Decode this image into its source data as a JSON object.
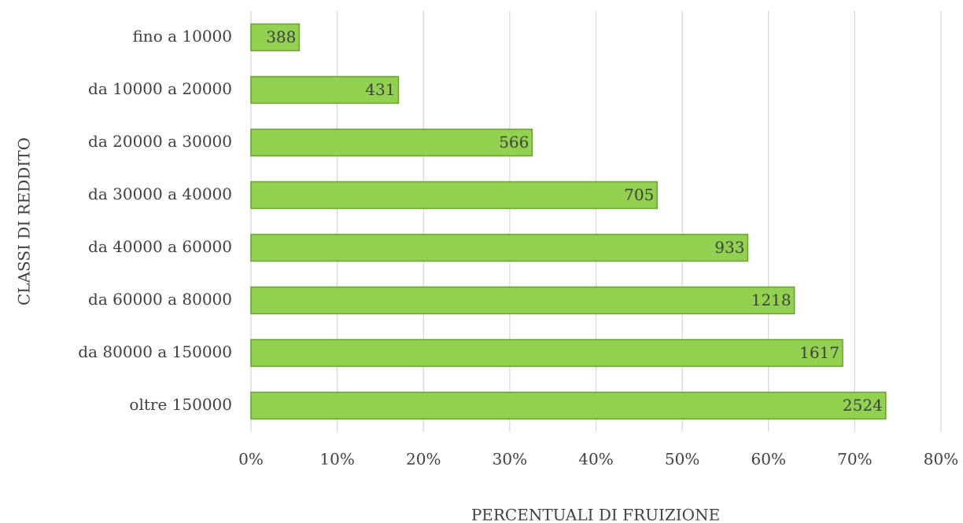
{
  "chart_data": {
    "type": "barh",
    "y_label": "CLASSI DI REDDITO",
    "x_label": "PERCENTUALI DI FRUIZIONE",
    "categories": [
      "fino a 10000",
      "da 10000 a 20000",
      "da 20000 a 30000",
      "da 30000 a 40000",
      "da 40000 a 60000",
      "da 60000 a 80000",
      "da 80000 a 150000",
      "oltre 150000"
    ],
    "values": [
      5.6,
      17.1,
      32.6,
      47.1,
      57.6,
      63.0,
      68.6,
      73.6
    ],
    "bar_texts": [
      388,
      431,
      566,
      705,
      933,
      1218,
      1617,
      2524
    ],
    "color": "#92d050",
    "xlim": [
      0,
      80
    ],
    "xticks": [
      {
        "value": 0,
        "label": "0%"
      },
      {
        "value": 10,
        "label": "10%"
      },
      {
        "value": 20,
        "label": "20%"
      },
      {
        "value": 30,
        "label": "30%"
      },
      {
        "value": 40,
        "label": "40%"
      },
      {
        "value": 50,
        "label": "50%"
      },
      {
        "value": 60,
        "label": "60%"
      },
      {
        "value": 70,
        "label": "70%"
      },
      {
        "value": 80,
        "label": "80%"
      }
    ],
    "grid": true
  }
}
